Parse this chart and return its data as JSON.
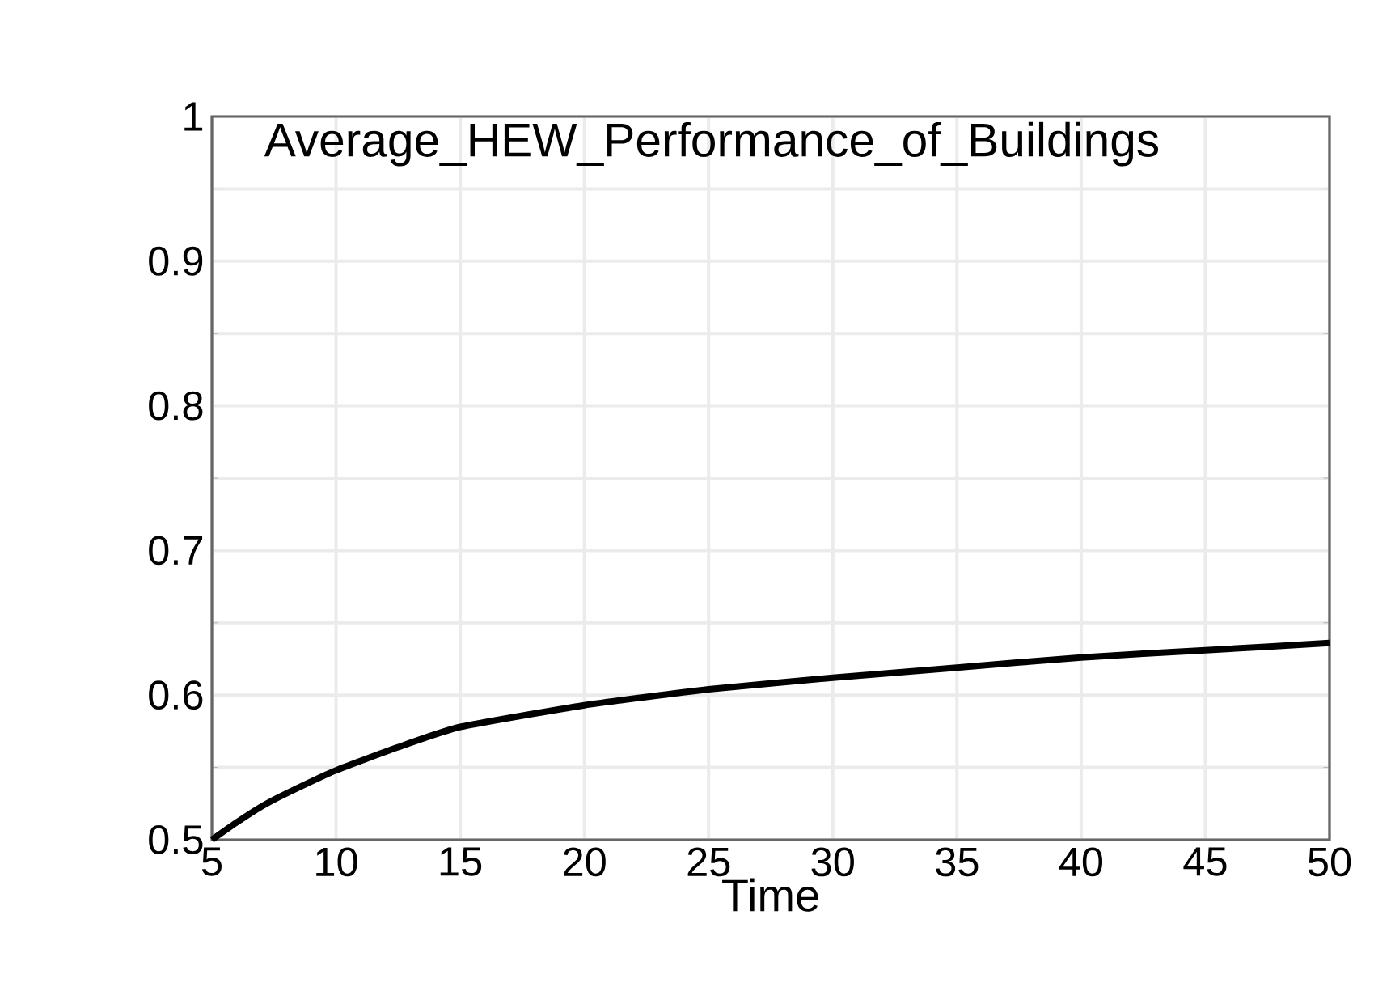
{
  "chart_data": {
    "type": "line",
    "title": "Average_HEW_Performance_of_Buildings",
    "xlabel": "Time",
    "x": [
      5,
      6,
      7,
      8,
      10,
      12.5,
      15,
      20,
      25,
      30,
      35,
      40,
      45,
      50
    ],
    "series": [
      {
        "color": "#000000",
        "values": [
          0.5,
          0.512,
          0.523,
          0.532,
          0.548,
          0.564,
          0.578,
          0.593,
          0.604,
          0.612,
          0.619,
          0.626,
          0.631,
          0.636
        ]
      }
    ],
    "xlim": [
      5,
      50
    ],
    "ylim": [
      0.5,
      1
    ],
    "xticks": [
      5,
      10,
      15,
      20,
      25,
      30,
      35,
      40,
      45,
      50
    ],
    "yticks": [
      0.5,
      0.6,
      0.7,
      0.8,
      0.9,
      1
    ],
    "grid": true,
    "marker": "none",
    "line_style": "solid"
  }
}
